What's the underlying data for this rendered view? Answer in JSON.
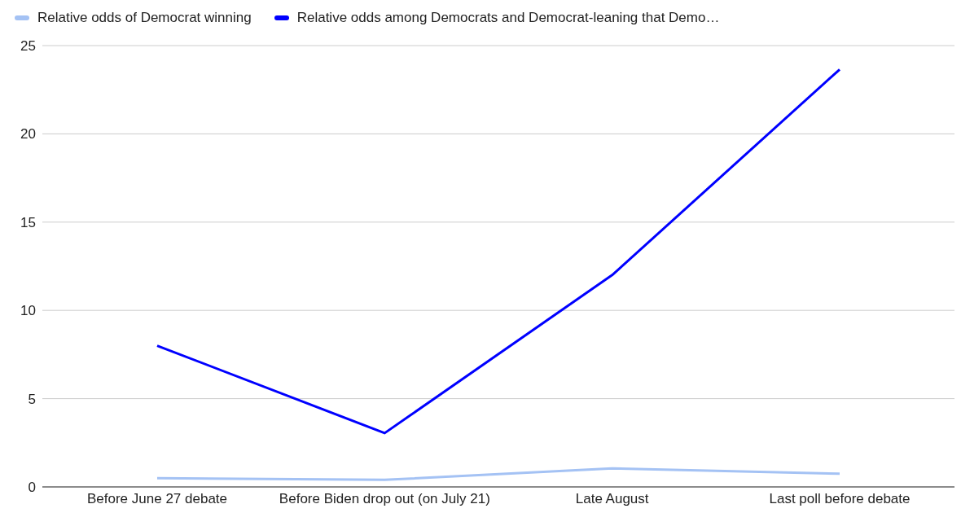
{
  "chart_data": {
    "type": "line",
    "categories": [
      "Before June 27 debate",
      "Before Biden drop out (on July 21)",
      "Late August",
      "Last poll before debate"
    ],
    "series": [
      {
        "name": "Relative odds of Democrat winning",
        "color": "#a4c2f4",
        "values": [
          0.5,
          0.4,
          1.05,
          0.75
        ]
      },
      {
        "name": "Relative odds among Democrats and Democrat-leaning that Demo…",
        "color": "#0000ff",
        "values": [
          8,
          3.05,
          12,
          23.65
        ]
      }
    ],
    "ylim": [
      0,
      25
    ],
    "yticks": [
      0,
      5,
      10,
      15,
      20,
      25
    ],
    "grid": "y",
    "legend": "top left"
  }
}
